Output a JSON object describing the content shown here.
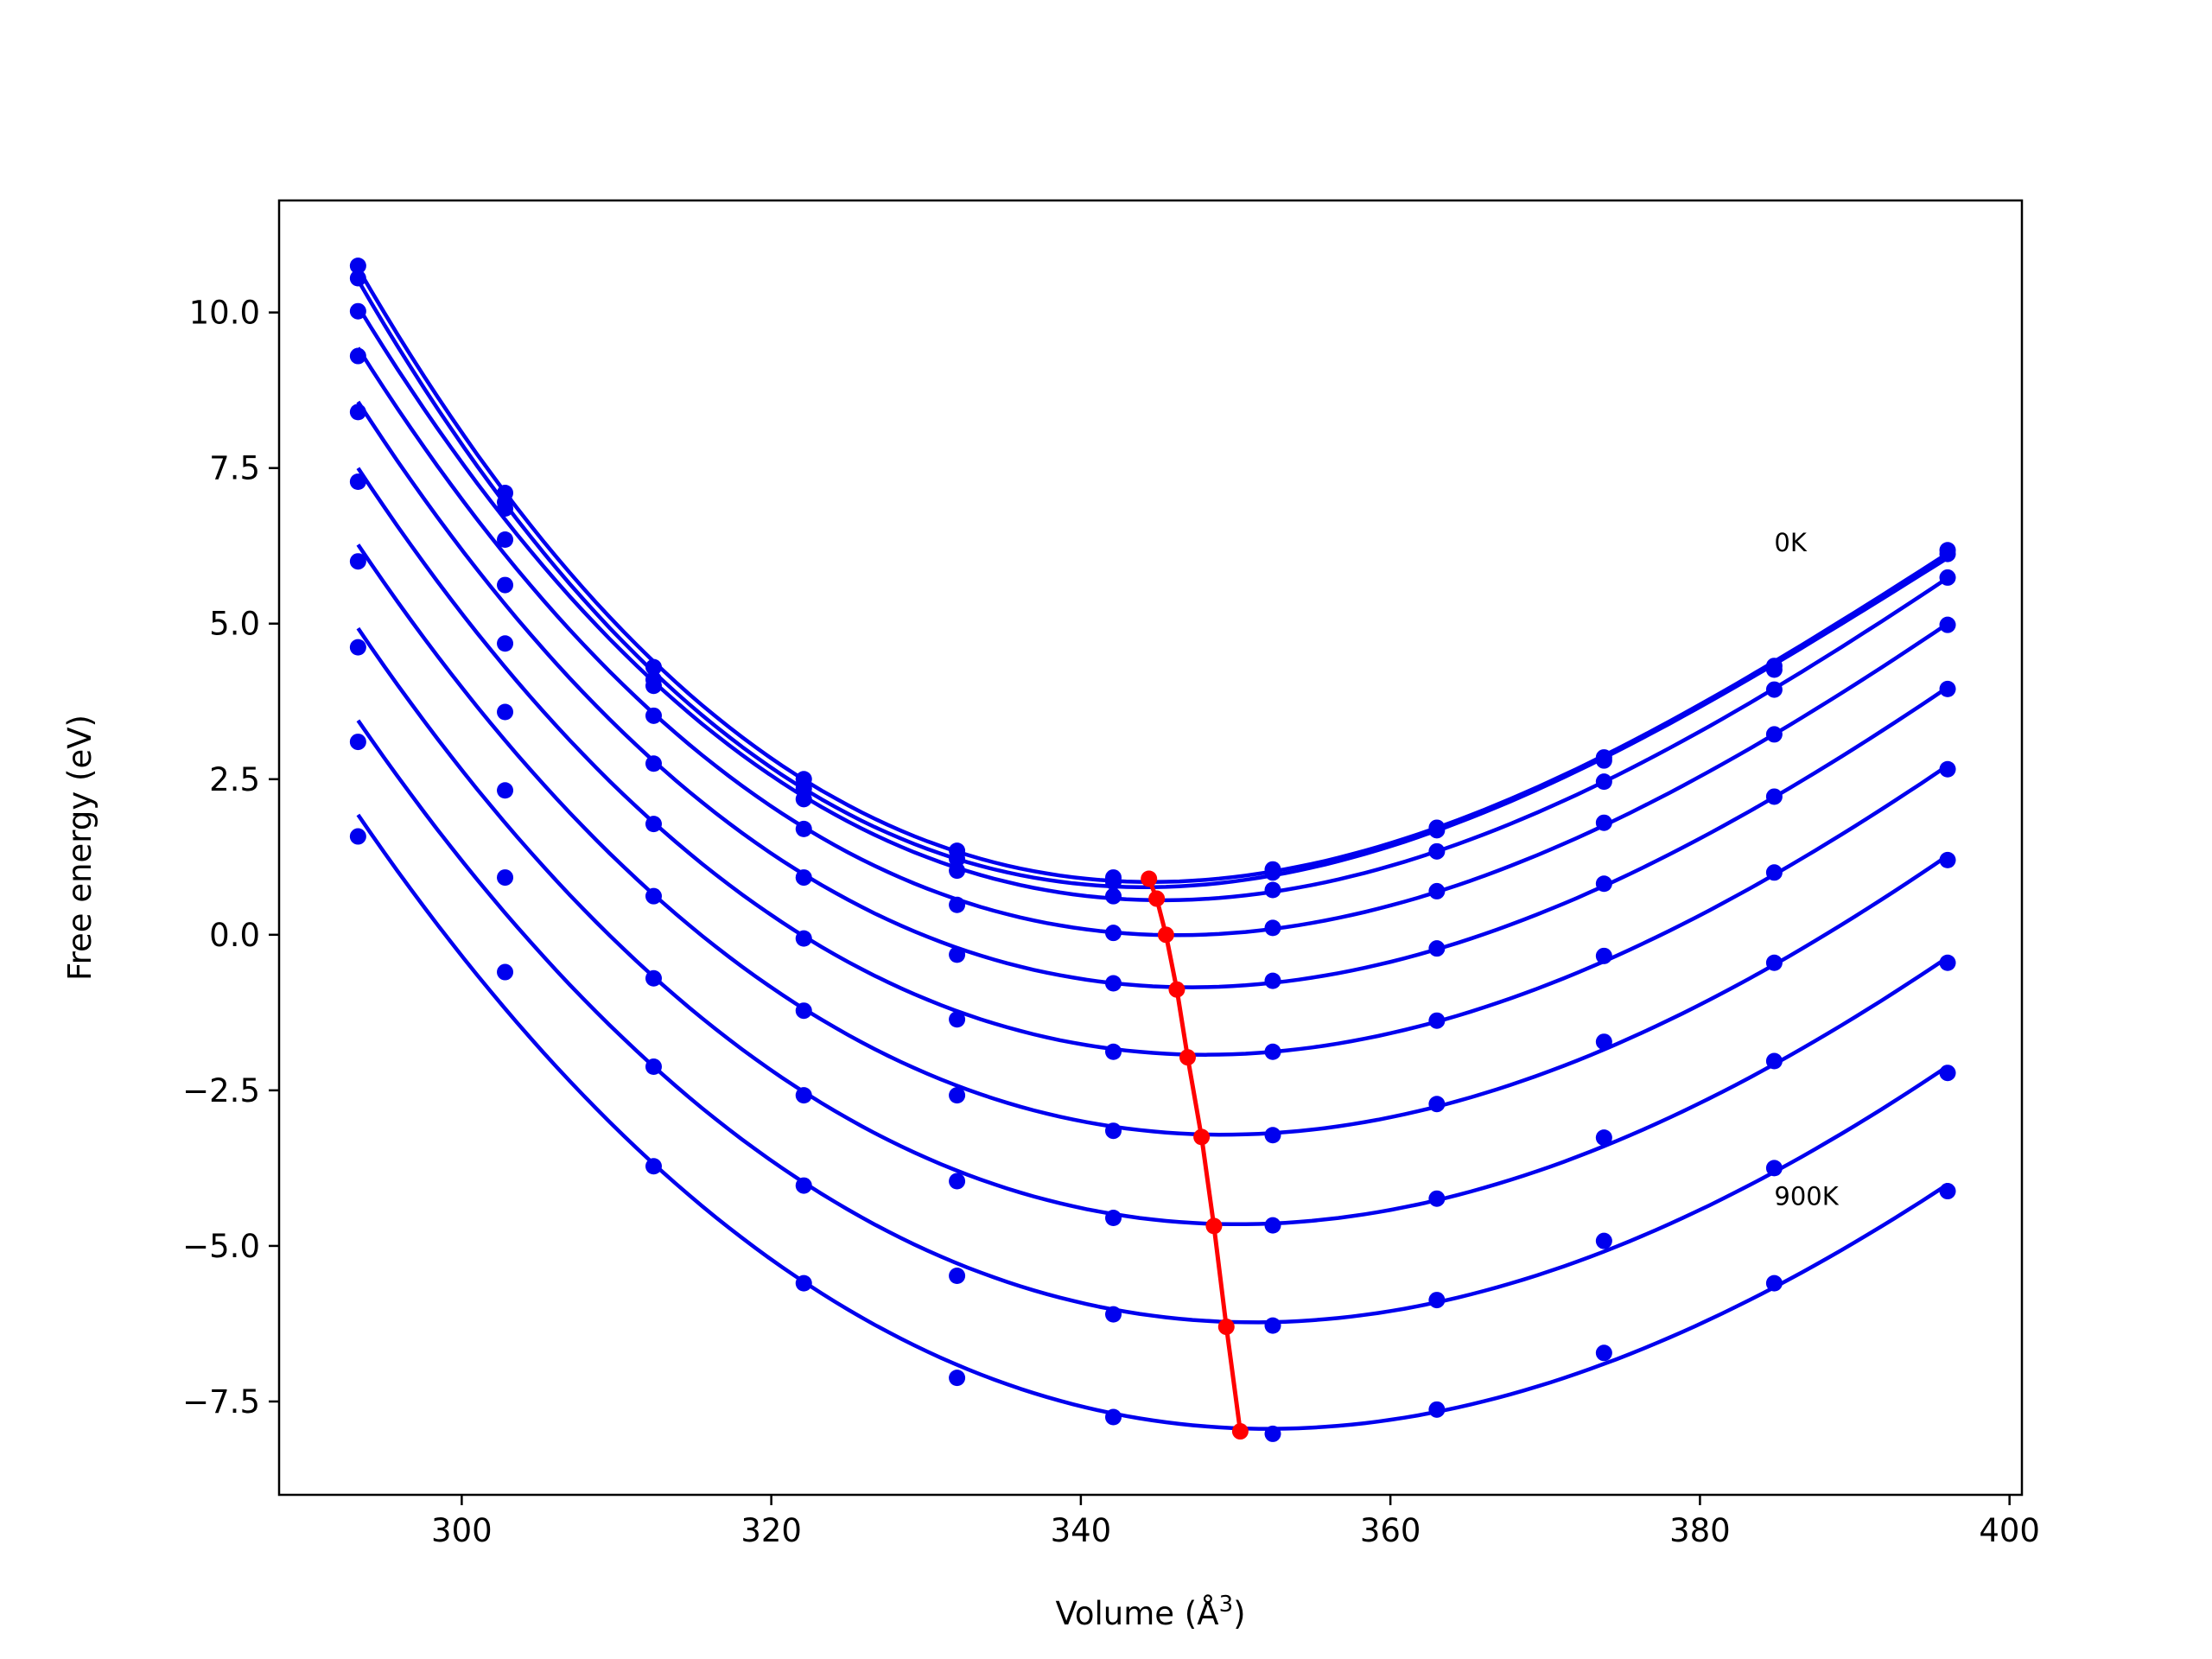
{
  "chart_data": {
    "type": "line",
    "title": "",
    "xlabel": "Volume (Å",
    "xlabel_sup": "3",
    "xlabel_close": ")",
    "ylabel": "Free energy (eV)",
    "xlim": [
      288.2,
      400.8
    ],
    "ylim": [
      -9.0,
      11.8
    ],
    "xticks": [
      300,
      320,
      340,
      360,
      380,
      400
    ],
    "yticks": [
      10.0,
      7.5,
      5.0,
      2.5,
      0.0,
      -2.5,
      -5.0,
      -7.5
    ],
    "ytick_labels": [
      "10.0",
      "7.5",
      "5.0",
      "2.5",
      "0.0",
      "−2.5",
      "−5.0",
      "−7.5"
    ],
    "grid": false,
    "volumes": [
      293.3,
      302.8,
      312.4,
      322.1,
      332.0,
      342.1,
      352.4,
      363.0,
      373.8,
      384.8,
      396.0
    ],
    "series": [
      {
        "values": [
          10.75,
          7.1,
          4.3,
          2.5,
          1.35,
          0.92,
          1.05,
          1.72,
          2.85,
          4.32,
          6.18
        ]
      },
      {
        "values": [
          10.55,
          6.95,
          4.1,
          2.35,
          1.22,
          0.85,
          1.0,
          1.68,
          2.8,
          4.26,
          6.12
        ]
      },
      {
        "values": [
          10.02,
          6.85,
          4.0,
          2.18,
          1.03,
          0.62,
          0.72,
          1.34,
          2.46,
          3.94,
          5.74
        ]
      },
      {
        "values": [
          9.3,
          6.35,
          3.52,
          1.7,
          0.48,
          0.03,
          0.11,
          0.7,
          1.8,
          3.22,
          4.98
        ]
      },
      {
        "values": [
          8.4,
          5.62,
          2.75,
          0.92,
          -0.32,
          -0.78,
          -0.74,
          -0.22,
          0.82,
          2.22,
          3.95
        ]
      },
      {
        "values": [
          7.28,
          4.68,
          1.78,
          -0.06,
          -1.36,
          -1.88,
          -1.88,
          -1.38,
          -0.34,
          1.0,
          2.66
        ]
      },
      {
        "values": [
          6.0,
          3.58,
          0.62,
          -1.22,
          -2.58,
          -3.15,
          -3.22,
          -2.72,
          -1.72,
          -0.45,
          1.2
        ]
      },
      {
        "values": [
          4.62,
          2.32,
          -0.7,
          -2.58,
          -3.96,
          -4.55,
          -4.67,
          -4.24,
          -3.26,
          -2.03,
          -0.45
        ]
      },
      {
        "values": [
          3.1,
          0.92,
          -2.12,
          -4.03,
          -5.48,
          -6.1,
          -6.28,
          -5.87,
          -4.92,
          -3.75,
          -2.22
        ]
      },
      {
        "values": [
          1.58,
          -0.6,
          -3.72,
          -5.6,
          -7.12,
          -7.75,
          -8.02,
          -7.63,
          -6.72,
          -5.6,
          -4.12
        ]
      }
    ],
    "minima": {
      "x": [
        344.4,
        344.9,
        345.5,
        346.2,
        346.9,
        347.8,
        348.6,
        349.4,
        350.3
      ],
      "y": [
        0.9,
        0.58,
        0.0,
        -0.88,
        -1.97,
        -3.25,
        -4.68,
        -6.3,
        -7.98
      ]
    },
    "colors": {
      "curves": "#0000ee",
      "minima": "#ff0000"
    },
    "annotations": [
      {
        "text": "0K",
        "x": 384.8,
        "y": 6.3
      },
      {
        "text": "900K",
        "x": 384.8,
        "y": -4.2
      }
    ]
  }
}
